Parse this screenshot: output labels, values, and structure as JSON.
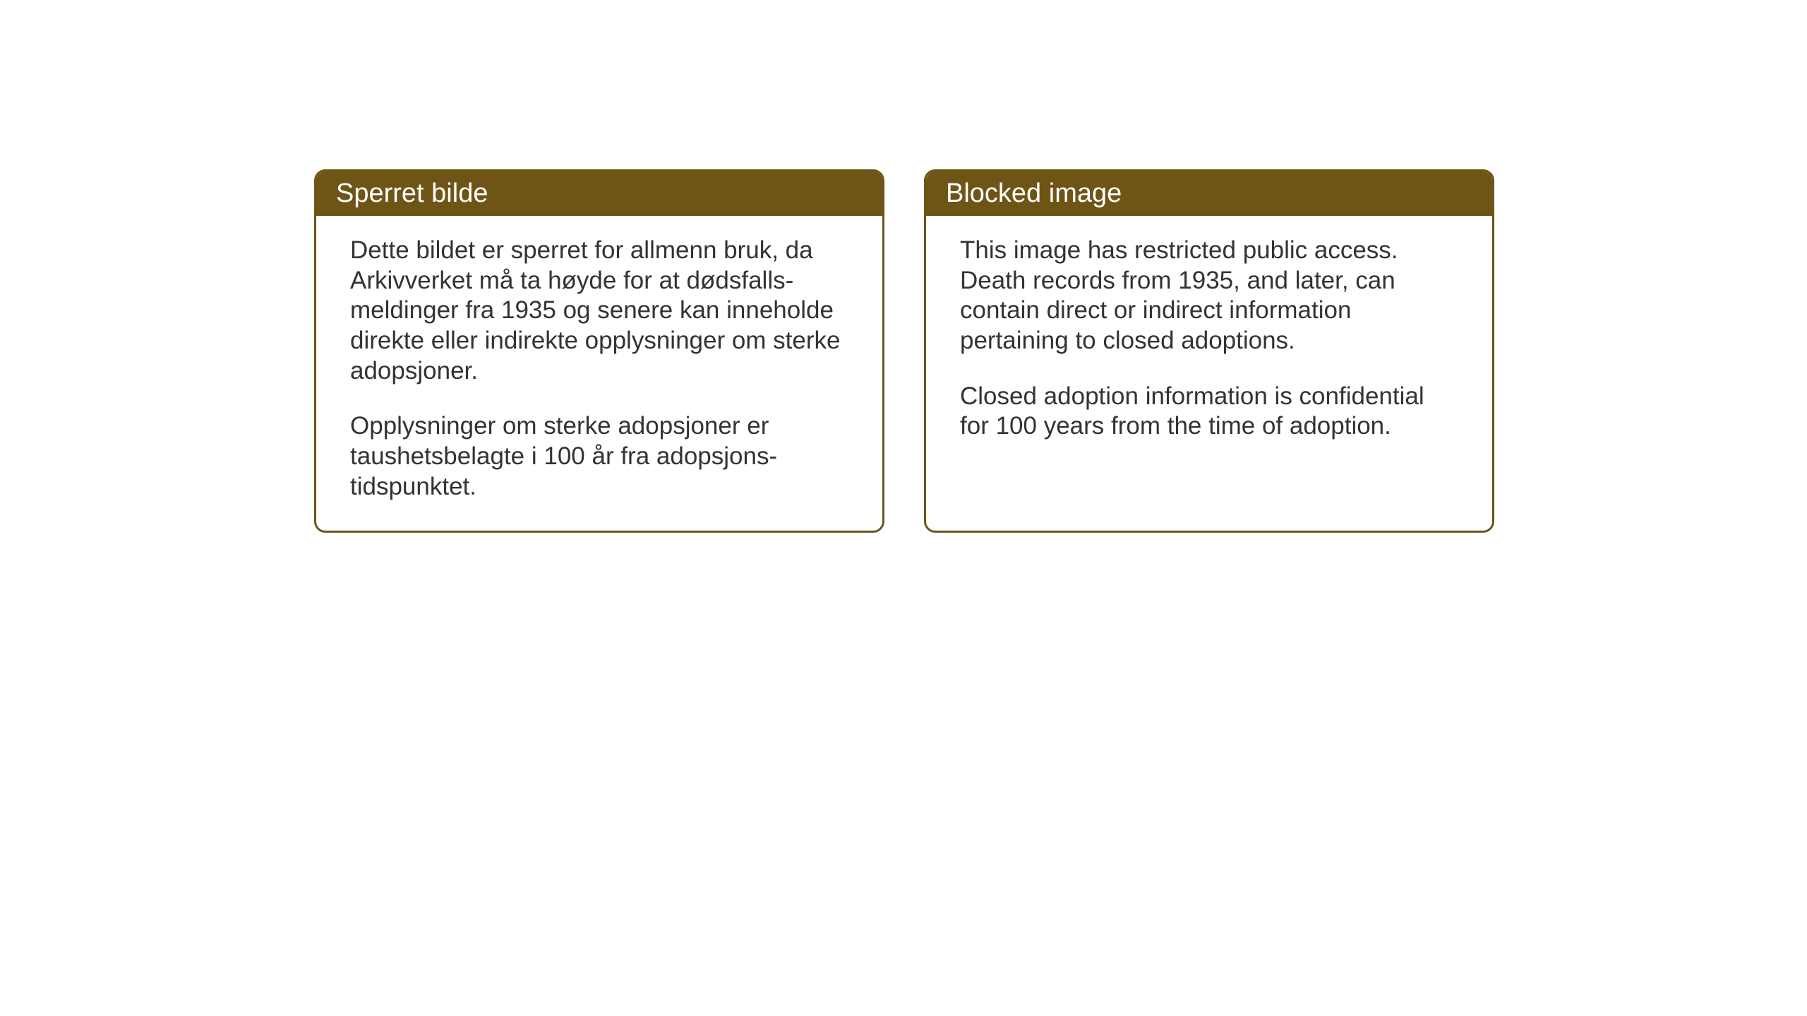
{
  "cards": {
    "norwegian": {
      "title": "Sperret bilde",
      "paragraph1": "Dette bildet er sperret for allmenn bruk, da Arkivverket må ta høyde for at dødsfalls-meldinger fra 1935 og senere kan inneholde direkte eller indirekte opplysninger om sterke adopsjoner.",
      "paragraph2": "Opplysninger om sterke adopsjoner er taushetsbelagte i 100 år fra adopsjons-tidspunktet."
    },
    "english": {
      "title": "Blocked image",
      "paragraph1": "This image has restricted public access. Death records from 1935, and later, can contain direct or indirect information pertaining to closed adoptions.",
      "paragraph2": "Closed adoption information is confidential for 100 years from the time of adoption."
    }
  },
  "styling": {
    "header_background_color": "#6e5515",
    "header_text_color": "#ffffff",
    "border_color": "#6e5515",
    "body_text_color": "#333333",
    "card_background_color": "#ffffff",
    "page_background_color": "#ffffff",
    "border_radius": 16,
    "border_width": 3,
    "title_fontsize": 38,
    "body_fontsize": 35
  }
}
